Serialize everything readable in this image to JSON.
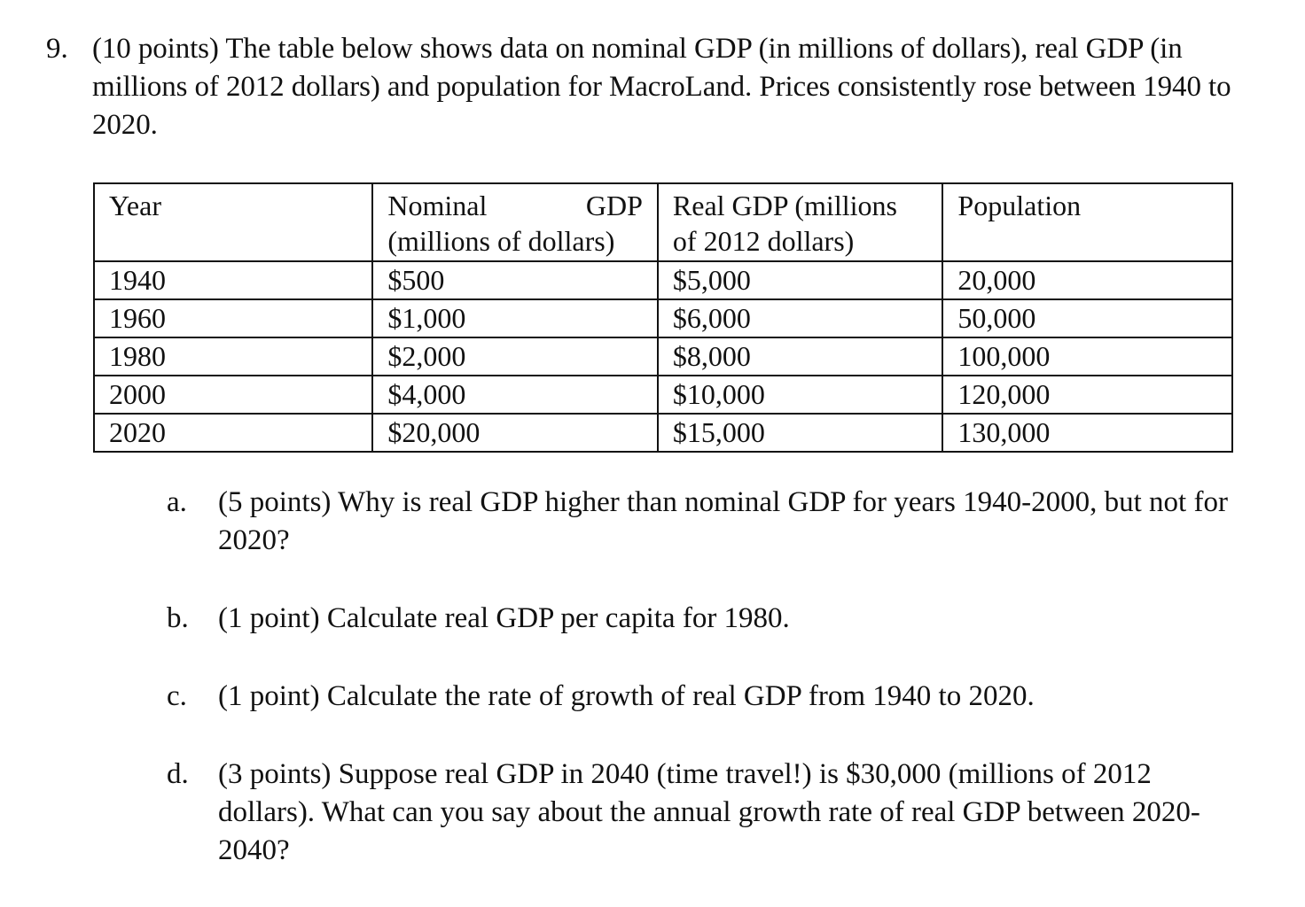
{
  "question": {
    "number": "9.",
    "text": "(10 points) The table below shows data on nominal GDP (in millions of dollars), real GDP (in millions of 2012 dollars) and population for MacroLand. Prices consistently rose between 1940 to 2020."
  },
  "table": {
    "headers": [
      "Year",
      "Nominal GDP (millions of dollars)",
      "Real GDP (millions of 2012 dollars)",
      "Population"
    ],
    "rows": [
      [
        "1940",
        "$500",
        "$5,000",
        "20,000"
      ],
      [
        "1960",
        "$1,000",
        "$6,000",
        "50,000"
      ],
      [
        "1980",
        "$2,000",
        "$8,000",
        "100,000"
      ],
      [
        "2000",
        "$4,000",
        "$10,000",
        "120,000"
      ],
      [
        "2020",
        "$20,000",
        "$15,000",
        "130,000"
      ]
    ]
  },
  "subparts": [
    {
      "letter": "a.",
      "text": "(5 points) Why is real GDP higher than nominal GDP for years 1940-2000, but not for 2020?"
    },
    {
      "letter": "b.",
      "text": "(1 point) Calculate real GDP per capita for 1980."
    },
    {
      "letter": "c.",
      "text": "(1 point) Calculate the rate of growth of real GDP from 1940 to 2020."
    },
    {
      "letter": "d.",
      "text": "(3 points) Suppose real GDP in 2040 (time travel!) is $30,000 (millions of 2012 dollars). What can you say about the annual growth rate of real GDP between 2020-2040?"
    }
  ]
}
